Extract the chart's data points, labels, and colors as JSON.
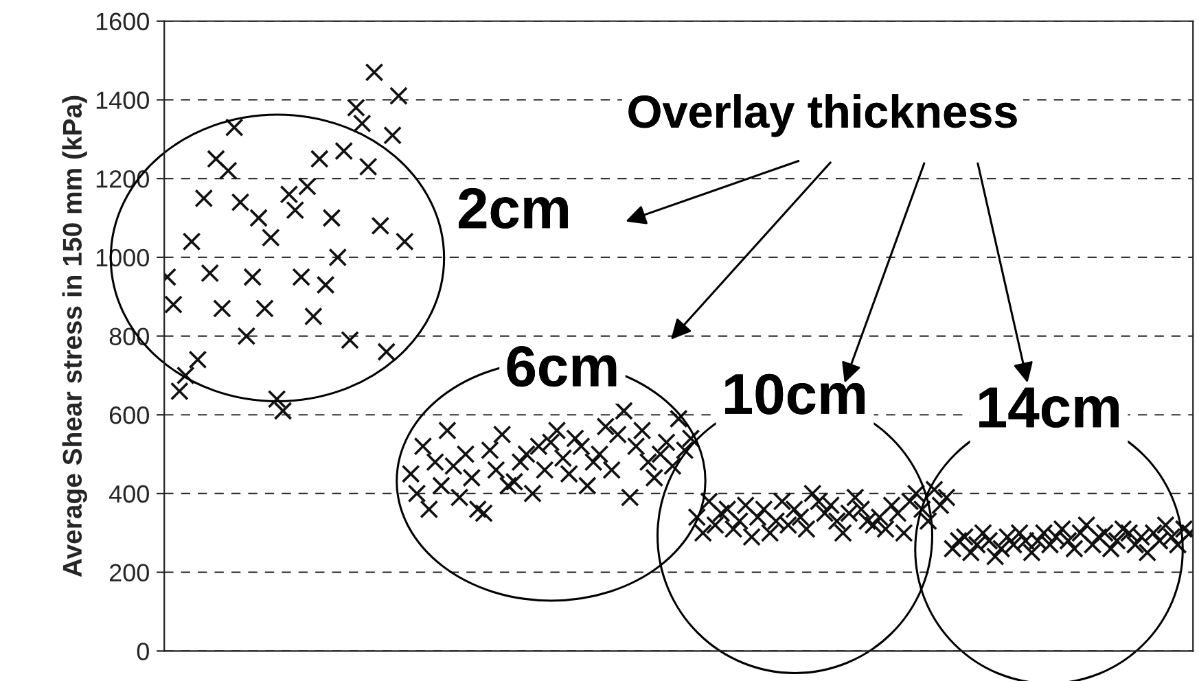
{
  "chart_data": {
    "type": "scatter",
    "ylabel": "Average Shear stress in 150 mm (kPa)",
    "categories": [
      null,
      null,
      null,
      null,
      null,
      null,
      null,
      null,
      null,
      null,
      null,
      null,
      null,
      null,
      null,
      null,
      null,
      null,
      null,
      null,
      null,
      null,
      null,
      null,
      null,
      null,
      null,
      null,
      null,
      null,
      null,
      null,
      null,
      null,
      null,
      null,
      null,
      null,
      null,
      null,
      null,
      null,
      null,
      null,
      null,
      null,
      null,
      null,
      null,
      null,
      null,
      null,
      null,
      null,
      null,
      null,
      null,
      null,
      null,
      null,
      null,
      null,
      null,
      null,
      null,
      null,
      null,
      null,
      null,
      null,
      null,
      null,
      null,
      null,
      null,
      null,
      null,
      null,
      null,
      null,
      null,
      null,
      null,
      null,
      null,
      null,
      null,
      null,
      null,
      null,
      null,
      null,
      null,
      null,
      null,
      null,
      null,
      null,
      null,
      null,
      null,
      null,
      null,
      null,
      null,
      null,
      null,
      null,
      null,
      null,
      null,
      null,
      null,
      null,
      null,
      null,
      null,
      null,
      null,
      null,
      null,
      null,
      null,
      null,
      null,
      null,
      null,
      null,
      null,
      null,
      null,
      null,
      null,
      null,
      null,
      null,
      null,
      null,
      null,
      null,
      null,
      null,
      null,
      null,
      null,
      null,
      null,
      null,
      null,
      null,
      null,
      null,
      null,
      null,
      null,
      null,
      null,
      null,
      null,
      null,
      null,
      null,
      null,
      null,
      null,
      null,
      null,
      null,
      null
    ],
    "series": [
      {
        "color": "#111111",
        "values": [
          950,
          880,
          660,
          700,
          1040,
          740,
          1150,
          960,
          1250,
          870,
          1220,
          1330,
          1140,
          800,
          950,
          1100,
          870,
          1050,
          640,
          610,
          1160,
          1120,
          950,
          1180,
          850,
          1250,
          930,
          1100,
          1000,
          1270,
          790,
          1380,
          1340,
          1230,
          1470,
          1080,
          760,
          1310,
          1410,
          1040,
          450,
          400,
          520,
          360,
          480,
          420,
          560,
          470,
          390,
          500,
          440,
          360,
          350,
          510,
          460,
          550,
          420,
          430,
          480,
          500,
          400,
          520,
          460,
          530,
          560,
          490,
          450,
          540,
          520,
          420,
          480,
          500,
          570,
          460,
          550,
          610,
          390,
          520,
          560,
          480,
          440,
          500,
          530,
          470,
          590,
          510,
          540,
          340,
          300,
          380,
          320,
          350,
          360,
          310,
          330,
          370,
          290,
          340,
          360,
          300,
          330,
          380,
          320,
          360,
          340,
          310,
          400,
          380,
          350,
          370,
          330,
          300,
          350,
          390,
          360,
          330,
          320,
          340,
          310,
          370,
          350,
          300,
          380,
          400,
          360,
          330,
          410,
          370,
          390,
          260,
          280,
          290,
          250,
          270,
          300,
          280,
          240,
          260,
          290,
          270,
          300,
          280,
          250,
          280,
          300,
          270,
          290,
          310,
          280,
          260,
          300,
          320,
          270,
          290,
          300,
          260,
          280,
          310,
          300,
          270,
          290,
          250,
          300,
          280,
          320,
          290,
          270,
          310,
          300
        ]
      }
    ],
    "ylim": [
      0,
      1600
    ],
    "yticks": [
      0,
      200,
      400,
      600,
      800,
      1000,
      1200,
      1400,
      1600
    ],
    "grid": "y",
    "marker": "cross",
    "tick_labels": "y",
    "annotations": [
      "Overlay thickness",
      "2cm",
      "6cm",
      "10cm",
      "14cm"
    ]
  }
}
